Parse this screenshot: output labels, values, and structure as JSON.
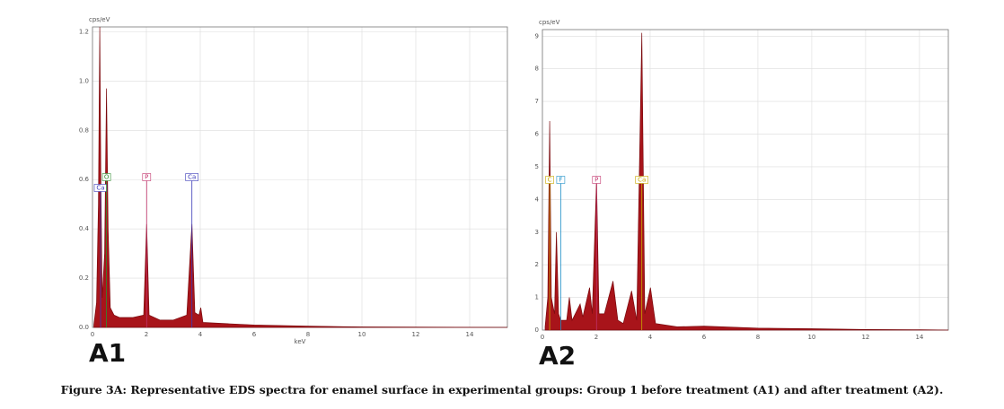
{
  "caption": "Figure 3A: Representative EDS spectra for enamel surface in experimental groups: Group 1 before treatment (A1) and after treatment (A2).",
  "chart_data": [
    {
      "type": "area",
      "panel_label": "A1",
      "y_label": "cps/eV",
      "x_label": "keV",
      "color": "#a8141a",
      "grid": true,
      "xlim": [
        0,
        15.4
      ],
      "ylim": [
        0,
        1.22
      ],
      "xticks": [
        0,
        2,
        4,
        6,
        8,
        10,
        12,
        14
      ],
      "yticks": [
        {
          "value": 0,
          "label": "0.0"
        },
        0.2,
        0.4,
        0.6,
        0.8,
        {
          "value": 1,
          "label": "1.0"
        },
        1.2
      ],
      "x": [
        0.05,
        0.15,
        0.22,
        0.27,
        0.31,
        0.36,
        0.45,
        0.52,
        0.58,
        0.66,
        0.8,
        1.0,
        1.5,
        1.9,
        2.01,
        2.1,
        2.5,
        3.0,
        3.5,
        3.69,
        3.8,
        3.95,
        4.02,
        4.1,
        5,
        6,
        8,
        10,
        15.4
      ],
      "values": [
        0.01,
        0.1,
        0.5,
        1.22,
        0.6,
        0.12,
        0.3,
        0.97,
        0.4,
        0.08,
        0.05,
        0.04,
        0.04,
        0.05,
        0.42,
        0.05,
        0.03,
        0.03,
        0.05,
        0.42,
        0.06,
        0.05,
        0.08,
        0.02,
        0.015,
        0.01,
        0.005,
        0.002,
        0
      ],
      "peaks": [
        {
          "label": "Ca",
          "x": 0.3,
          "color": "#3a3ab8"
        },
        {
          "label": "O",
          "x": 0.52,
          "color": "#2e8b2e"
        },
        {
          "label": "P",
          "x": 2.01,
          "color": "#c0306a"
        },
        {
          "label": "Ca",
          "x": 3.69,
          "color": "#3a3ab8"
        }
      ]
    },
    {
      "type": "area",
      "panel_label": "A2",
      "y_label": "cps/eV",
      "color": "#a8141a",
      "grid": true,
      "xlim": [
        0,
        15.07
      ],
      "ylim": [
        0,
        9.2
      ],
      "xticks": [
        0,
        2,
        4,
        6,
        8,
        10,
        12,
        14
      ],
      "yticks": [
        0,
        1,
        2,
        3,
        4,
        5,
        6,
        7,
        8,
        9
      ],
      "x": [
        0.1,
        0.2,
        0.27,
        0.33,
        0.45,
        0.52,
        0.6,
        0.68,
        0.9,
        1.0,
        1.1,
        1.4,
        1.5,
        1.75,
        1.85,
        2.01,
        2.1,
        2.3,
        2.62,
        2.8,
        3.0,
        3.31,
        3.5,
        3.69,
        3.8,
        4.01,
        4.2,
        5,
        6,
        8,
        10,
        12,
        14,
        15.07
      ],
      "values": [
        0.1,
        1.0,
        6.4,
        1.0,
        0.5,
        3.0,
        0.5,
        0.3,
        0.3,
        1.0,
        0.3,
        0.8,
        0.4,
        1.3,
        0.5,
        4.6,
        0.5,
        0.5,
        1.5,
        0.3,
        0.2,
        1.2,
        0.3,
        9.1,
        0.5,
        1.3,
        0.2,
        0.1,
        0.12,
        0.06,
        0.04,
        0.02,
        0.01,
        0
      ],
      "peaks": [
        {
          "label": "C",
          "x": 0.27,
          "color": "#c8a800"
        },
        {
          "label": "F",
          "x": 0.68,
          "color": "#1e90c8"
        },
        {
          "label": "P",
          "x": 2.01,
          "color": "#c0306a"
        },
        {
          "label": "Ca",
          "x": 3.69,
          "color": "#c8a800"
        }
      ]
    }
  ]
}
